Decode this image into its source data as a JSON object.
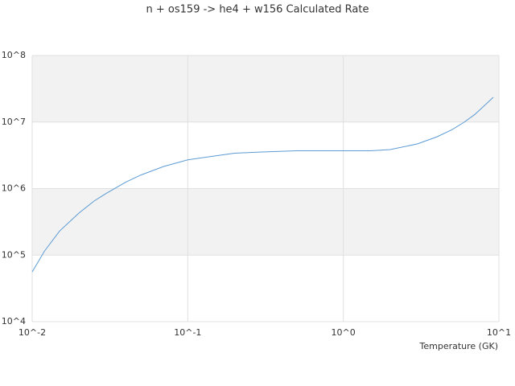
{
  "chart_data": {
    "type": "line",
    "title": "n + os159 -> he4 + w156 Calculated Rate",
    "x_label": "Temperature (GK)",
    "xscale": "log",
    "yscale": "log",
    "xlim": [
      0.01,
      10
    ],
    "ylim": [
      10000,
      100000000
    ],
    "xticks": [
      {
        "value": 0.01,
        "label": "10^-2"
      },
      {
        "value": 0.1,
        "label": "10^-1"
      },
      {
        "value": 1,
        "label": "10^0"
      },
      {
        "value": 10,
        "label": "10^1"
      }
    ],
    "yticks": [
      {
        "value": 10000,
        "label": "10^4"
      },
      {
        "value": 100000,
        "label": "10^5"
      },
      {
        "value": 1000000,
        "label": "10^6"
      },
      {
        "value": 10000000,
        "label": "10^7"
      },
      {
        "value": 100000000,
        "label": "10^8"
      }
    ],
    "grid": true,
    "band_color": "#f2f2f2",
    "x": [
      0.01,
      0.012,
      0.015,
      0.02,
      0.025,
      0.03,
      0.04,
      0.05,
      0.07,
      0.1,
      0.15,
      0.2,
      0.3,
      0.5,
      1,
      1.5,
      2,
      3,
      4,
      5,
      6,
      7,
      9.2
    ],
    "series": [
      {
        "color": "#5b9bd5",
        "values": [
          56000,
          115000,
          230000,
          430000,
          650000,
          850000,
          1250000,
          1600000,
          2150000,
          2700000,
          3100000,
          3400000,
          3550000,
          3700000,
          3700000,
          3700000,
          3850000,
          4700000,
          6000000,
          7700000,
          10000000,
          13000000,
          23500000
        ]
      }
    ]
  }
}
